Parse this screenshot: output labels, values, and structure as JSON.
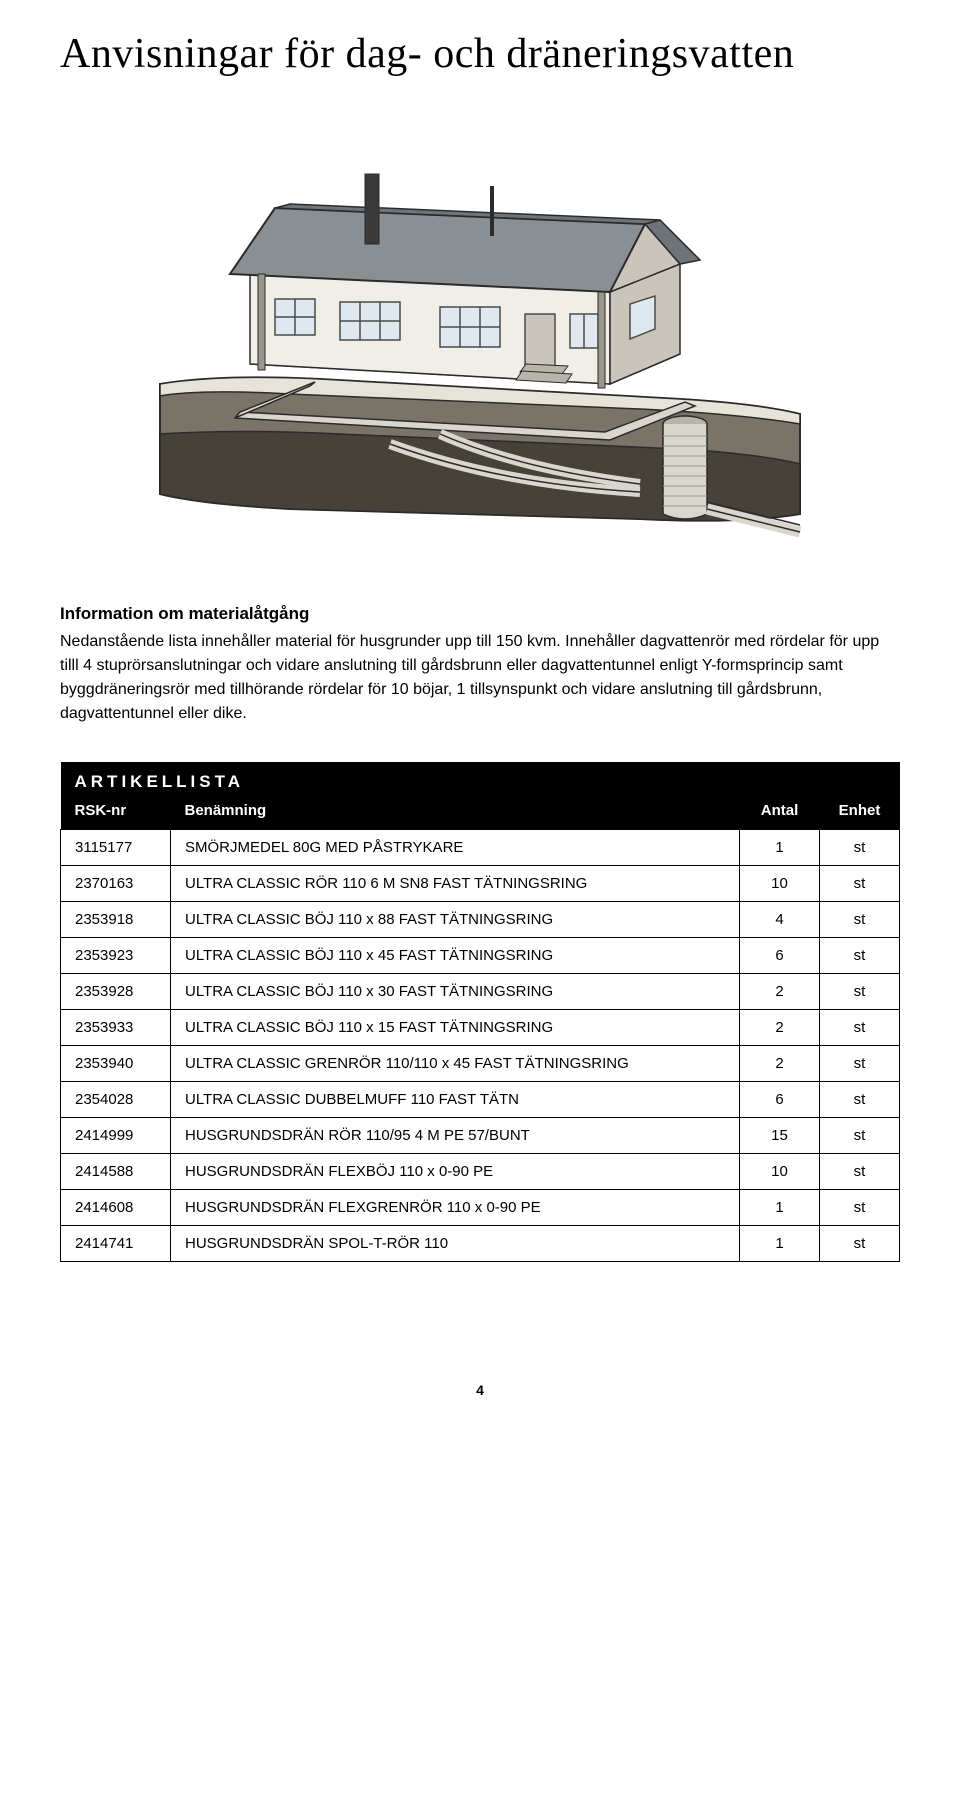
{
  "title": "Anvisningar för dag- och dräneringsvatten",
  "section_heading": "Information om materialåtgång",
  "paragraph1": "Nedanstående lista innehåller material för husgrunder upp till 150 kvm. Innehåller dagvattenrör med rördelar för upp tilll 4 stuprörsanslutningar och vidare anslutning till gårdsbrunn eller dagvattentunnel enligt Y-formsprincip samt byggdräneringsrör med tillhörande rördelar för 10 böjar, 1 tillsynspunkt och vidare anslutning till gårdsbrunn, dagvattentunnel eller dike.",
  "table": {
    "caption": "ARTIKELLISTA",
    "columns": [
      "RSK-nr",
      "Benämning",
      "Antal",
      "Enhet"
    ],
    "rows": [
      [
        "3115177",
        "SMÖRJMEDEL 80G MED PÅSTRYKARE",
        "1",
        "st"
      ],
      [
        "2370163",
        "ULTRA CLASSIC RÖR 110 6 M SN8 FAST TÄTNINGSRING",
        "10",
        "st"
      ],
      [
        "2353918",
        "ULTRA CLASSIC BÖJ 110 x 88 FAST TÄTNINGSRING",
        "4",
        "st"
      ],
      [
        "2353923",
        "ULTRA CLASSIC BÖJ 110 x 45 FAST TÄTNINGSRING",
        "6",
        "st"
      ],
      [
        "2353928",
        "ULTRA CLASSIC BÖJ 110 x 30 FAST TÄTNINGSRING",
        "2",
        "st"
      ],
      [
        "2353933",
        "ULTRA CLASSIC BÖJ 110 x 15 FAST TÄTNINGSRING",
        "2",
        "st"
      ],
      [
        "2353940",
        "ULTRA CLASSIC GRENRÖR 110/110 x 45 FAST TÄTNINGSRING",
        "2",
        "st"
      ],
      [
        "2354028",
        "ULTRA CLASSIC DUBBELMUFF 110 FAST TÄTN",
        "6",
        "st"
      ],
      [
        "2414999",
        "HUSGRUNDSDRÄN RÖR 110/95 4 M PE 57/BUNT",
        "15",
        "st"
      ],
      [
        "2414588",
        "HUSGRUNDSDRÄN FLEXBÖJ 110 x 0-90 PE",
        "10",
        "st"
      ],
      [
        "2414608",
        "HUSGRUNDSDRÄN FLEXGRENRÖR 110 x 0-90 PE",
        "1",
        "st"
      ],
      [
        "2414741",
        "HUSGRUNDSDRÄN SPOL-T-RÖR 110",
        "1",
        "st"
      ]
    ]
  },
  "page_number": "4",
  "illustration": {
    "colors": {
      "sky": "#ffffff",
      "roof": "#8a8f94",
      "wall_light": "#f0eee6",
      "wall_shadow": "#c9c5ba",
      "ground_top": "#e6e3d9",
      "soil_mid": "#7a7468",
      "soil_dark": "#46423a",
      "pipe_light": "#d8d6cd",
      "pipe_dark": "#9a968a",
      "window": "#dfe8ef",
      "frame": "#4a4a4a",
      "chimney": "#3a3a3a",
      "outline": "#2b2b2b"
    }
  }
}
